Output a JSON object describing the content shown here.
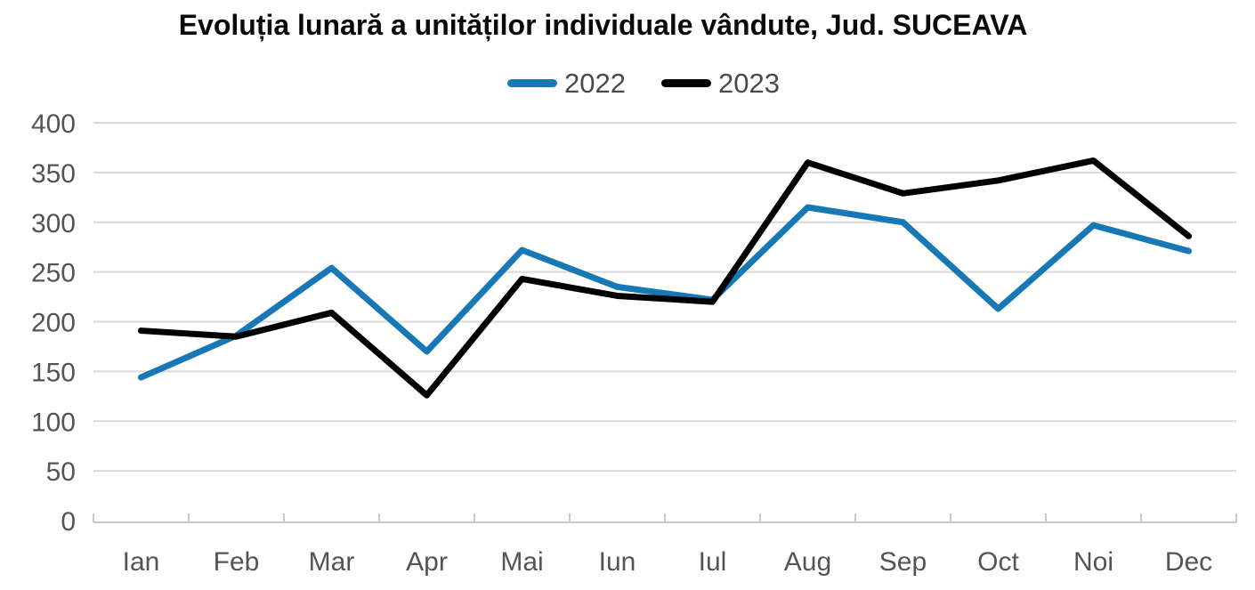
{
  "title": "Evoluția lunară a unităților individuale vândute, Jud. SUCEAVA",
  "legend": [
    {
      "label": "2022",
      "color": "#1878b5"
    },
    {
      "label": "2023",
      "color": "#000000"
    }
  ],
  "colors": {
    "series_2022": "#1878b5",
    "series_2023": "#000000",
    "gridline": "#d9d9d9",
    "axis_line": "#c9c9c9",
    "tick_label": "#545454",
    "title_text": "#0a0a0a",
    "legend_text": "#4a4a4a",
    "background": "#ffffff"
  },
  "chart_data": {
    "type": "line",
    "title": "Evoluția lunară a unităților individuale vândute, Jud. SUCEAVA",
    "categories": [
      "Ian",
      "Feb",
      "Mar",
      "Apr",
      "Mai",
      "Iun",
      "Iul",
      "Aug",
      "Sep",
      "Oct",
      "Noi",
      "Dec"
    ],
    "series": [
      {
        "name": "2022",
        "color": "#1878b5",
        "values": [
          144,
          186,
          254,
          170,
          272,
          235,
          222,
          315,
          300,
          213,
          297,
          271
        ]
      },
      {
        "name": "2023",
        "color": "#000000",
        "values": [
          191,
          185,
          209,
          126,
          243,
          226,
          220,
          360,
          329,
          342,
          362,
          286
        ]
      }
    ],
    "xlabel": "",
    "ylabel": "",
    "ylim": [
      0,
      400
    ],
    "yticks": [
      0,
      50,
      100,
      150,
      200,
      250,
      300,
      350,
      400
    ],
    "grid": true,
    "legend_position": "top-center"
  }
}
